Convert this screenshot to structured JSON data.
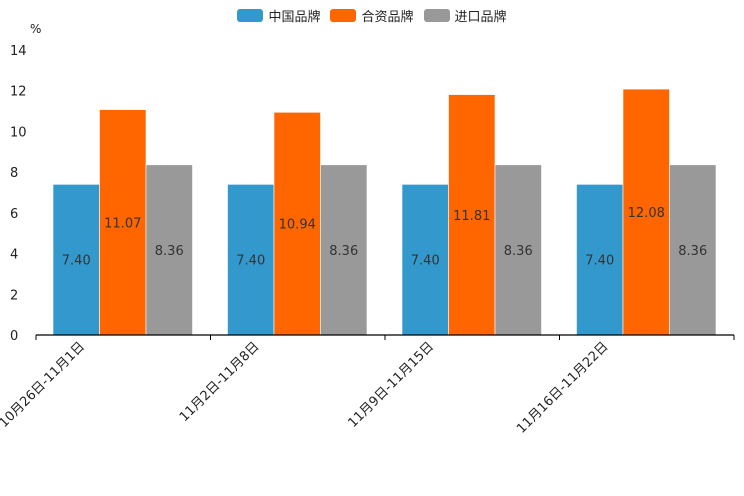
{
  "chart_data": {
    "type": "bar",
    "title": "",
    "ylabel": "%",
    "xlabel": "",
    "ylim": [
      0,
      14
    ],
    "yticks": [
      0,
      2,
      4,
      6,
      8,
      10,
      12,
      14
    ],
    "categories": [
      "10月26日-11月1日",
      "11月2日-11月8日",
      "11月9日-11月15日",
      "11月16日-11月22日"
    ],
    "series": [
      {
        "name": "中国品牌",
        "color": "#3399cc",
        "values": [
          7.4,
          7.4,
          7.4,
          7.4
        ],
        "labels": [
          "7.40",
          "7.40",
          "7.40",
          "7.40"
        ]
      },
      {
        "name": "合资品牌",
        "color": "#ff6600",
        "values": [
          11.07,
          10.94,
          11.81,
          12.08
        ],
        "labels": [
          "11.07",
          "10.94",
          "11.81",
          "12.08"
        ]
      },
      {
        "name": "进口品牌",
        "color": "#999999",
        "values": [
          8.36,
          8.36,
          8.36,
          8.36
        ],
        "labels": [
          "8.36",
          "8.36",
          "8.36",
          "8.36"
        ]
      }
    ],
    "legend_position": "top-center"
  }
}
